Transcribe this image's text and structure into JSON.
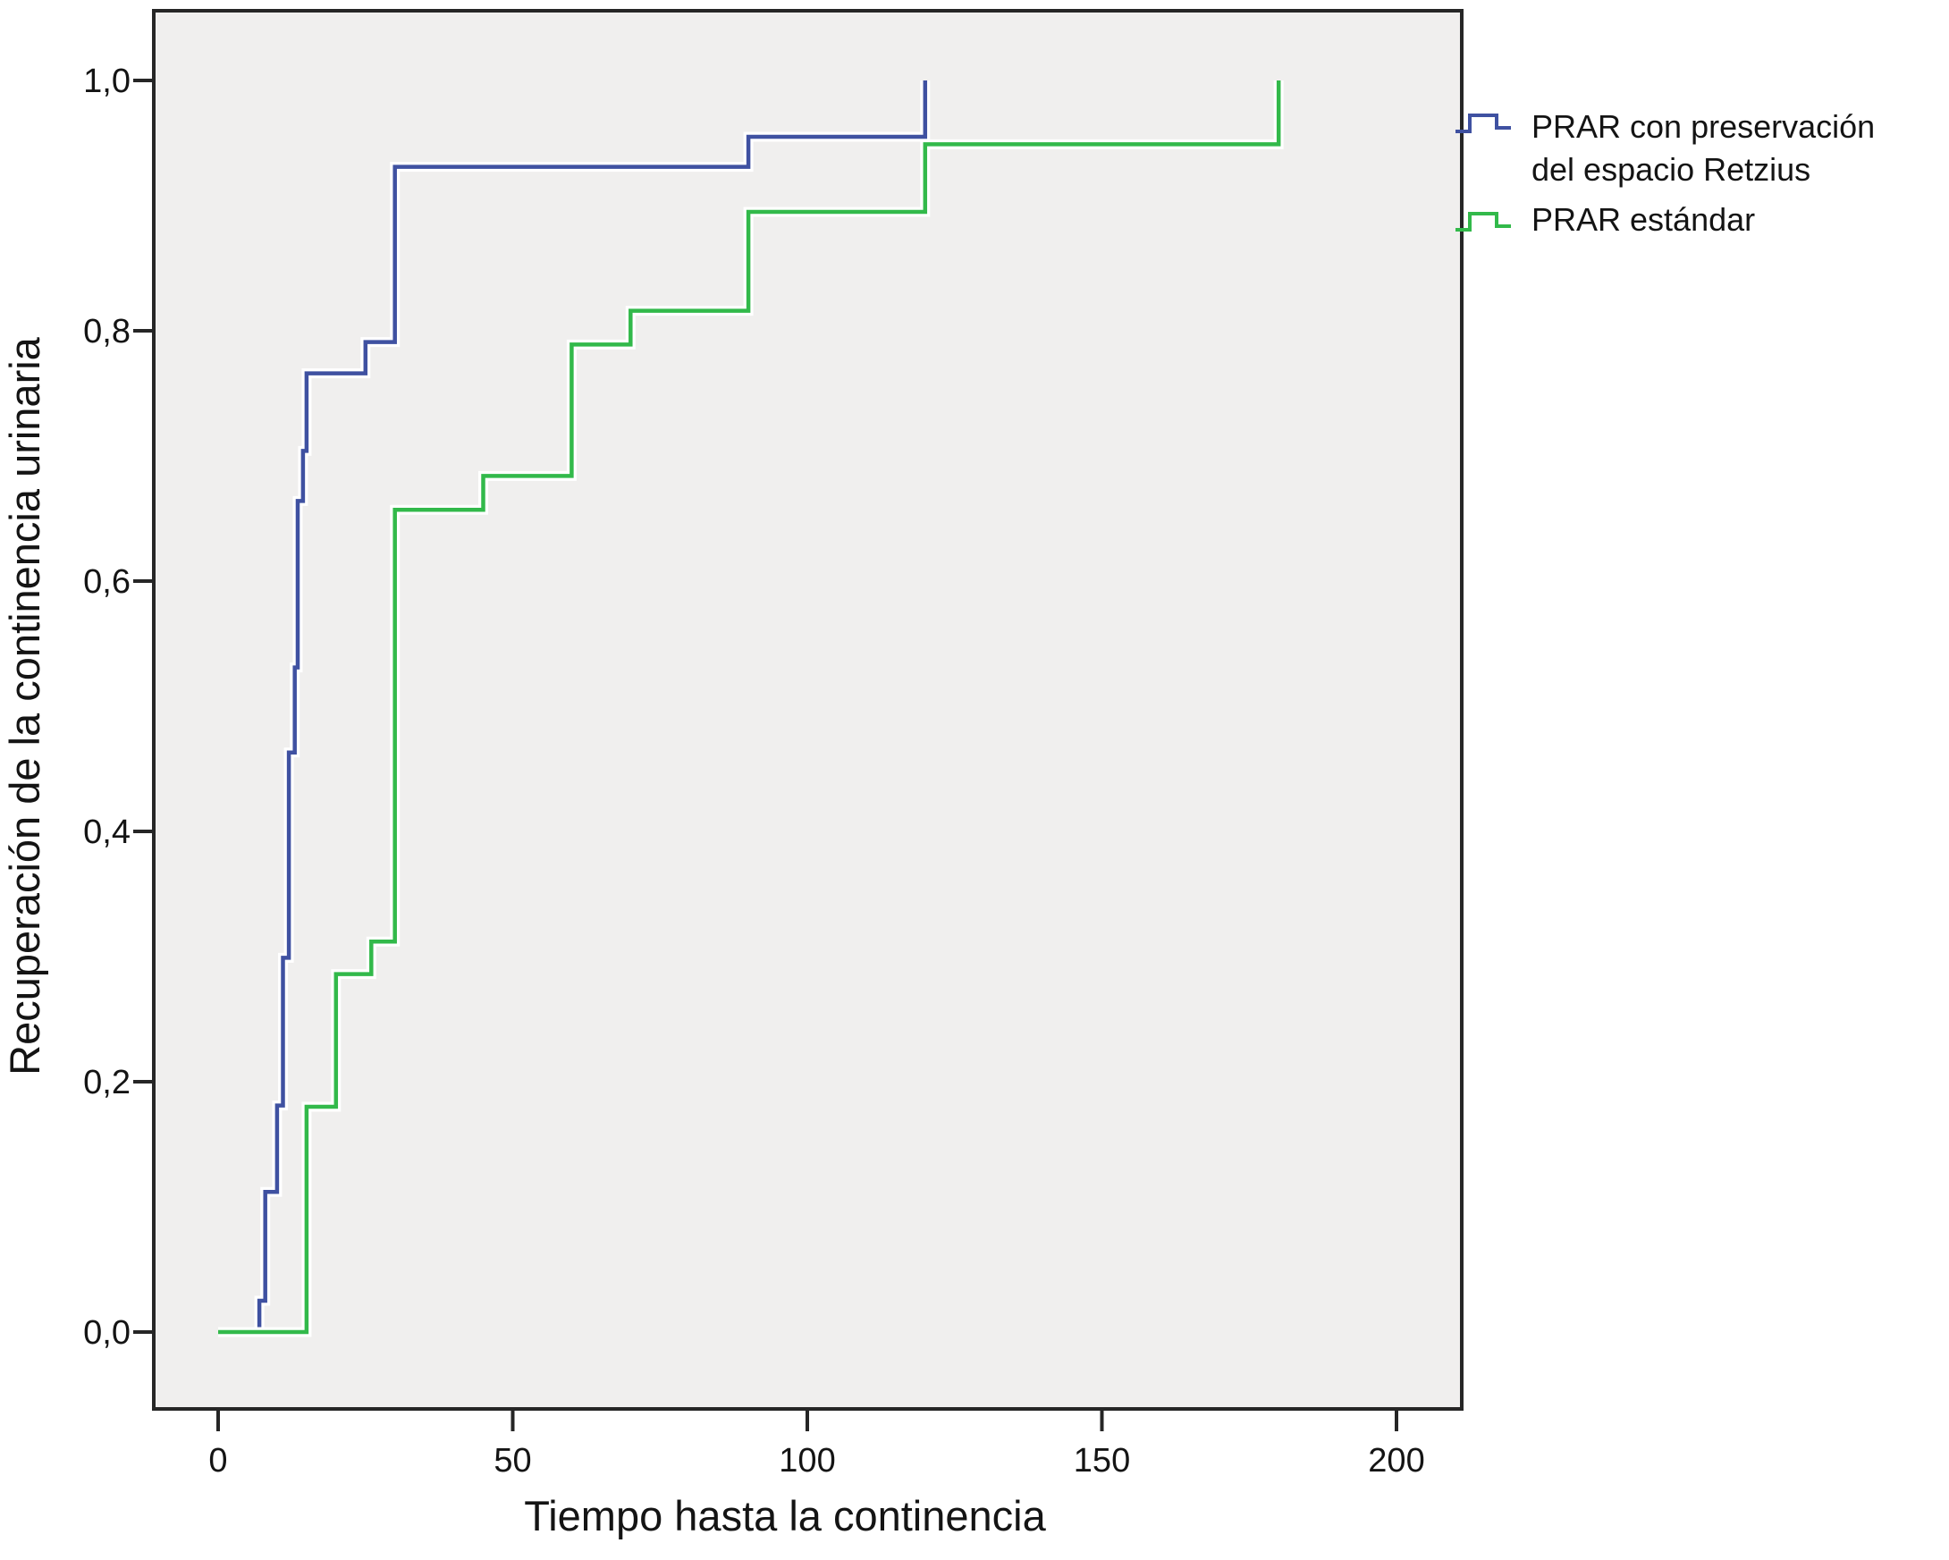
{
  "chart_data": {
    "type": "line",
    "variant": "kaplan-meier-step",
    "title": "",
    "xlabel": "Tiempo hasta la continencia",
    "ylabel": "Recuperación de la continencia urinaria",
    "x_ticks": [
      {
        "label": "0",
        "value": 0
      },
      {
        "label": "50",
        "value": 50
      },
      {
        "label": "100",
        "value": 100
      },
      {
        "label": "150",
        "value": 150
      },
      {
        "label": "200",
        "value": 200
      }
    ],
    "y_ticks": [
      {
        "label": "0,0",
        "value": 0.0
      },
      {
        "label": "0,2",
        "value": 0.2
      },
      {
        "label": "0,4",
        "value": 0.4
      },
      {
        "label": "0,6",
        "value": 0.6
      },
      {
        "label": "0,8",
        "value": 0.8
      },
      {
        "label": "1,0",
        "value": 1.0
      }
    ],
    "xlim": [
      -11,
      211
    ],
    "ylim": [
      -0.061,
      1.056
    ],
    "grid": false,
    "panel_bg": "#f0efee",
    "frame_color": "#262626",
    "legend_position": "top-right-outside",
    "series": [
      {
        "name": "PRAR con preservación del espacio Retzius",
        "color": "#3f51a1",
        "start": [
          0,
          0
        ],
        "steps": [
          [
            7,
            0.025
          ],
          [
            8,
            0.112
          ],
          [
            10,
            0.181
          ],
          [
            11,
            0.299
          ],
          [
            12,
            0.463
          ],
          [
            13,
            0.531
          ],
          [
            13.5,
            0.664
          ],
          [
            14.4,
            0.704
          ],
          [
            15,
            0.766
          ],
          [
            25,
            0.791
          ],
          [
            30,
            0.931
          ],
          [
            90,
            0.955
          ],
          [
            120,
            1.0
          ]
        ]
      },
      {
        "name": "PRAR estándar",
        "color": "#32b94a",
        "start": [
          0,
          0
        ],
        "steps": [
          [
            15,
            0.18
          ],
          [
            20,
            0.286
          ],
          [
            26,
            0.312
          ],
          [
            30,
            0.657
          ],
          [
            45,
            0.684
          ],
          [
            60,
            0.789
          ],
          [
            70,
            0.816
          ],
          [
            90,
            0.895
          ],
          [
            120,
            0.949
          ],
          [
            180,
            1.0
          ]
        ]
      }
    ]
  },
  "legend": {
    "items": [
      {
        "lines": [
          "PRAR con preservación",
          "del espacio Retzius"
        ],
        "color": "#3f51a1"
      },
      {
        "lines": [
          "PRAR estándar"
        ],
        "color": "#32b94a"
      }
    ]
  }
}
